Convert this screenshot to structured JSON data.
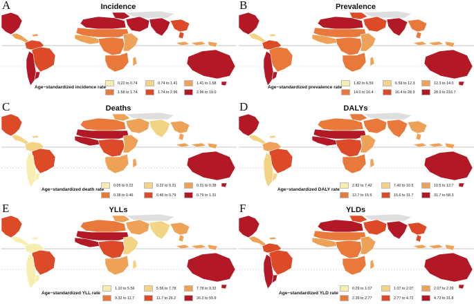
{
  "colors": {
    "c1": "#f6eeae",
    "c2": "#f3d384",
    "c3": "#eda258",
    "c4": "#e8793a",
    "c5": "#dc4a27",
    "c6": "#b21826",
    "nodata": "#dedede",
    "ocean": "#ffffff"
  },
  "panels": [
    {
      "letter": "A",
      "title": "Incidence",
      "legend_title": "Age−standardized incidence rate",
      "legend": [
        "0.22 to 0.74",
        "0.74 to 1.41",
        "1.41 to 1.58",
        "1.58 to 1.74",
        "1.74 to 2.96",
        "2.96 to 19.0"
      ],
      "shading": {
        "na": 6,
        "ca": 3,
        "sa_n": 5,
        "brazil": 5,
        "sa_s": 6,
        "nafrica": 6,
        "sahel": 4,
        "waf": 3,
        "caf": 4,
        "eaf": 3,
        "saf": 4,
        "mideast": 6,
        "india": 6,
        "sea": 5,
        "indo": 3,
        "aus": 6
      }
    },
    {
      "letter": "B",
      "title": "Prevalence",
      "legend_title": "Age−standardized prevalence rate",
      "legend": [
        "1.82 to 6.59",
        "6.59 to 12.3",
        "12.3 to 14.0",
        "14.0 to 16.4",
        "16.4 to 28.9",
        "28.9 to 216.7"
      ],
      "shading": {
        "na": 6,
        "ca": 2,
        "sa_n": 5,
        "brazil": 4,
        "sa_s": 6,
        "nafrica": 6,
        "sahel": 4,
        "waf": 3,
        "caf": 4,
        "eaf": 3,
        "saf": 4,
        "mideast": 5,
        "india": 6,
        "sea": 4,
        "indo": 3,
        "aus": 6
      }
    },
    {
      "letter": "C",
      "title": "Deaths",
      "legend_title": "Age−standardized death rate",
      "legend": [
        "0.05 to 0.22",
        "0.22 to 0.31",
        "0.31 to 0.38",
        "0.38 to 0.46",
        "0.46 to 0.79",
        "0.79 to 1.31"
      ],
      "shading": {
        "na": 5,
        "ca": 2,
        "sa_n": 2,
        "brazil": 5,
        "sa_s": 1,
        "nafrica": 4,
        "sahel": 6,
        "waf": 6,
        "caf": 5,
        "eaf": 3,
        "saf": 3,
        "mideast": 3,
        "india": 2,
        "sea": 3,
        "indo": 3,
        "aus": 6
      }
    },
    {
      "letter": "D",
      "title": "DALYs",
      "legend_title": "Age−standardized DALY rate",
      "legend": [
        "2.82 to 7.42",
        "7.42 to 10.5",
        "10.5 to 12.7",
        "12.7 to 15.6",
        "15.6 to 31.7",
        "31.7 to 58.3"
      ],
      "shading": {
        "na": 6,
        "ca": 2,
        "sa_n": 3,
        "brazil": 5,
        "sa_s": 2,
        "nafrica": 4,
        "sahel": 6,
        "waf": 6,
        "caf": 5,
        "eaf": 3,
        "saf": 4,
        "mideast": 4,
        "india": 4,
        "sea": 3,
        "indo": 3,
        "aus": 6
      }
    },
    {
      "letter": "E",
      "title": "YLLs",
      "legend_title": "Age−standardized YLL rate",
      "legend": [
        "1.10 to 5.56",
        "5.56 to 7.78",
        "7.78 to 9.32",
        "9.32 to 11.7",
        "11.7 to 26.2",
        "26.2 to 55.9"
      ],
      "shading": {
        "na": 5,
        "ca": 1,
        "sa_n": 1,
        "brazil": 5,
        "sa_s": 1,
        "nafrica": 4,
        "sahel": 6,
        "waf": 6,
        "caf": 5,
        "eaf": 2,
        "saf": 3,
        "mideast": 3,
        "india": 2,
        "sea": 3,
        "indo": 3,
        "aus": 6
      }
    },
    {
      "letter": "F",
      "title": "YLDs",
      "legend_title": "Age−standardized YLD rate",
      "legend": [
        "0.29 to 1.07",
        "1.07 to 2.07",
        "2.07 to 2.39",
        "2.39 to 2.77",
        "2.77 to 4.72",
        "4.72 to 31.8"
      ],
      "shading": {
        "na": 6,
        "ca": 3,
        "sa_n": 5,
        "brazil": 5,
        "sa_s": 6,
        "nafrica": 6,
        "sahel": 4,
        "waf": 3,
        "caf": 4,
        "eaf": 3,
        "saf": 4,
        "mideast": 5,
        "india": 6,
        "sea": 5,
        "indo": 3,
        "aus": 6
      }
    }
  ]
}
